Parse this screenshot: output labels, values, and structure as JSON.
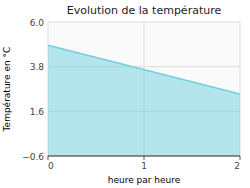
{
  "chart_data": {
    "type": "area",
    "title": "Evolution de la température",
    "x_label": "heure par heure",
    "y_label": "Température en °C",
    "x": [
      0,
      2
    ],
    "values": [
      4.85,
      2.45
    ],
    "color": "#6dcfe0",
    "xlim": [
      0,
      2
    ],
    "xticks": [
      0,
      1,
      2
    ],
    "ylim": [
      -0.6,
      6.0
    ],
    "yticks": [
      {
        "value": -0.6,
        "label": "−0.6"
      },
      1.6,
      3.8,
      {
        "value": 6.0,
        "label": "6.0"
      }
    ],
    "grid": true
  }
}
